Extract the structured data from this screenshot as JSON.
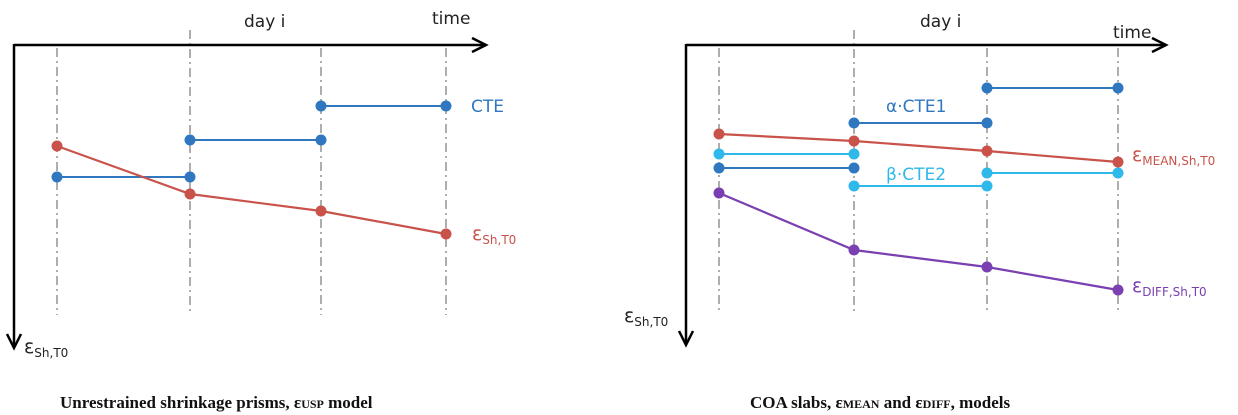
{
  "left_panel": {
    "axis_x_label": "time",
    "tick_label": "day i",
    "axis_y_label": {
      "main": "ε",
      "sub": "Sh,T0"
    },
    "cte_label": "CTE",
    "strain_label": {
      "main": "ε",
      "sub": "Sh,T0"
    },
    "caption": {
      "pre": "Unrestrained shrinkage prisms, ε",
      "sub": "USP",
      "post": " model"
    }
  },
  "right_panel": {
    "axis_x_label": "time",
    "tick_label": "day i",
    "axis_y_label": {
      "main": "ε",
      "sub": "Sh,T0"
    },
    "cte1_label": "α·CTE1",
    "cte2_label": "β·CTE2",
    "mean_label": {
      "main": "ε",
      "sub": "MEAN,Sh,T0"
    },
    "diff_label": {
      "main": "ε",
      "sub": "DIFF,Sh,T0"
    },
    "caption": {
      "pre": "COA slabs, ε",
      "sub1": "MEAN",
      "mid": " and ε",
      "sub2": "DIFF",
      "post": ", models"
    }
  },
  "colors": {
    "axis": "#000000",
    "grid": "#9a9a9a",
    "blue": "#2f78c0",
    "light_blue": "#2fb8ea",
    "red": "#c9534a",
    "purple": "#7a3fb0"
  }
}
